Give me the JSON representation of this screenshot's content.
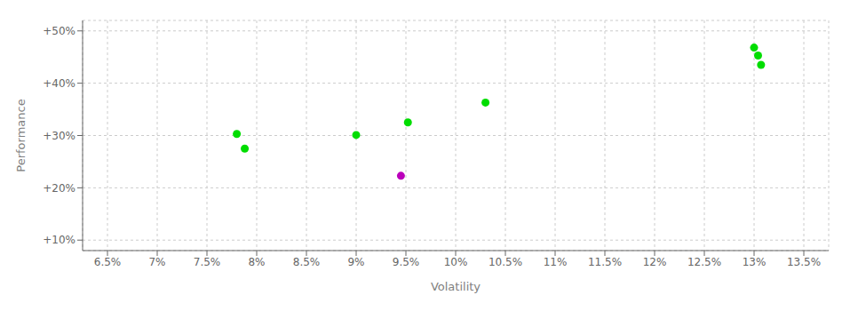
{
  "chart_data": {
    "type": "scatter",
    "x": [
      7.8,
      7.88,
      9.0,
      9.45,
      9.52,
      10.3,
      13.0,
      13.04,
      13.07
    ],
    "values": [
      30.3,
      27.5,
      30.1,
      22.3,
      32.5,
      36.3,
      46.8,
      45.3,
      43.5
    ],
    "colors": [
      "#00dd00",
      "#00dd00",
      "#00dd00",
      "#bb00bb",
      "#00dd00",
      "#00dd00",
      "#00dd00",
      "#00dd00",
      "#00dd00"
    ],
    "xlabel": "Volatility",
    "ylabel": "Performance",
    "xlim": [
      6.25,
      13.75
    ],
    "ylim": [
      8.0,
      52.0
    ],
    "xticks": [
      {
        "value": 6.5,
        "label": "6.5%"
      },
      {
        "value": 7.0,
        "label": "7%"
      },
      {
        "value": 7.5,
        "label": "7.5%"
      },
      {
        "value": 8.0,
        "label": "8%"
      },
      {
        "value": 8.5,
        "label": "8.5%"
      },
      {
        "value": 9.0,
        "label": "9%"
      },
      {
        "value": 9.5,
        "label": "9.5%"
      },
      {
        "value": 10.0,
        "label": "10%"
      },
      {
        "value": 10.5,
        "label": "10.5%"
      },
      {
        "value": 11.0,
        "label": "11%"
      },
      {
        "value": 11.5,
        "label": "11.5%"
      },
      {
        "value": 12.0,
        "label": "12%"
      },
      {
        "value": 12.5,
        "label": "12.5%"
      },
      {
        "value": 13.0,
        "label": "13%"
      },
      {
        "value": 13.5,
        "label": "13.5%"
      }
    ],
    "yticks": [
      {
        "value": 10,
        "label": "+10%"
      },
      {
        "value": 20,
        "label": "+20%"
      },
      {
        "value": 30,
        "label": "+30%"
      },
      {
        "value": 40,
        "label": "+40%"
      },
      {
        "value": 50,
        "label": "+50%"
      }
    ],
    "grid": true
  }
}
